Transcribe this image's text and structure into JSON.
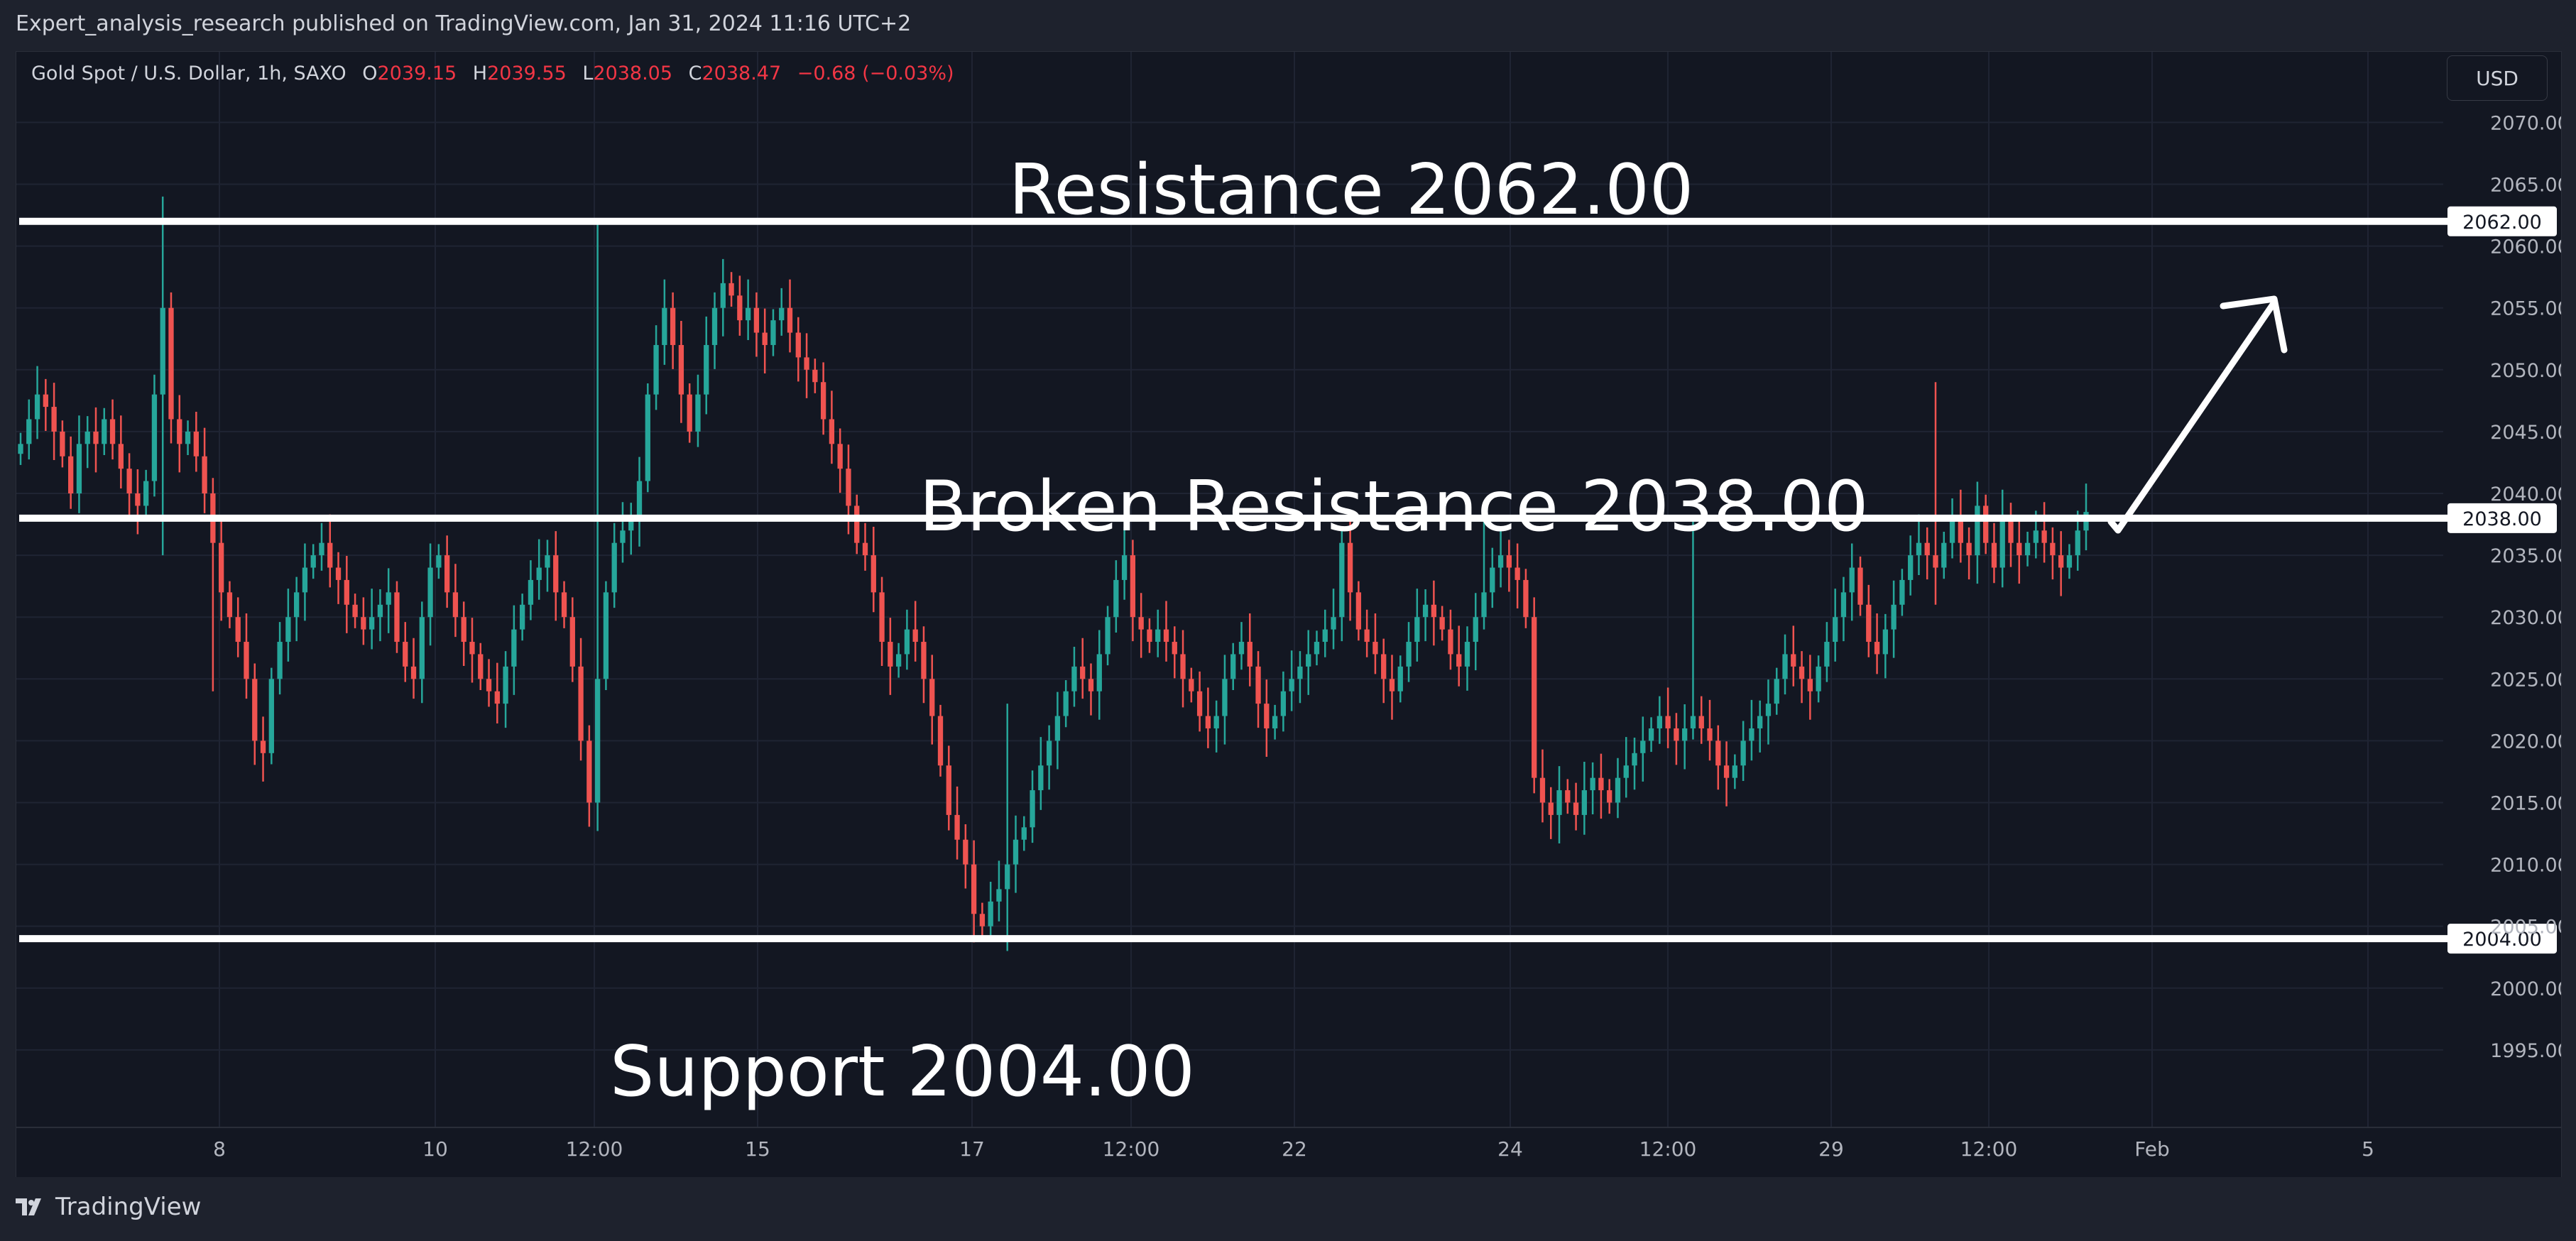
{
  "header": {
    "published": "Expert_analysis_research published on TradingView.com, Jan 31, 2024 11:16 UTC+2"
  },
  "legend": {
    "symbol": "Gold Spot / U.S. Dollar, 1h, SAXO",
    "o_label": "O",
    "o": "2039.15",
    "h_label": "H",
    "h": "2039.55",
    "l_label": "L",
    "l": "2038.05",
    "c_label": "C",
    "c": "2038.47",
    "change": "−0.68 (−0.03%)"
  },
  "currency": "USD",
  "footer": {
    "brand": "TradingView"
  },
  "colors": {
    "background": "#131722",
    "grid": "#1f2433",
    "up": "#26a69a",
    "down": "#ef5350",
    "annotation": "#ffffff"
  },
  "chart_data": {
    "type": "candlestick",
    "y_ticks": [
      "1995.00",
      "2000.00",
      "2005.00",
      "2010.00",
      "2015.00",
      "2020.00",
      "2025.00",
      "2030.00",
      "2035.00",
      "2040.00",
      "2045.00",
      "2050.00",
      "2055.00",
      "2060.00",
      "2065.00",
      "2070.00"
    ],
    "ylim": [
      1990.5,
      2072
    ],
    "x_ticks": [
      "8",
      "10",
      "12:00",
      "15",
      "17",
      "12:00",
      "22",
      "24",
      "12:00",
      "29",
      "12:00",
      "Feb",
      "5"
    ],
    "grid": true,
    "levels": [
      {
        "value": 2062.0,
        "label": "2062.00",
        "annotation": "Resistance 2062.00"
      },
      {
        "value": 2038.0,
        "label": "2038.00",
        "annotation": "Broken Resistance 2038.00"
      },
      {
        "value": 2004.0,
        "label": "2004.00",
        "annotation": "Support 2004.00"
      }
    ],
    "closes": [
      2044,
      2046,
      2048,
      2047,
      2045,
      2043,
      2040,
      2044,
      2045,
      2044,
      2046,
      2044,
      2042,
      2040,
      2039,
      2041,
      2048,
      2055,
      2046,
      2044,
      2045,
      2043,
      2040,
      2036,
      2032,
      2030,
      2028,
      2025,
      2020,
      2019,
      2025,
      2028,
      2030,
      2032,
      2034,
      2035,
      2036,
      2034,
      2033,
      2031,
      2030,
      2029,
      2030,
      2031,
      2032,
      2028,
      2026,
      2025,
      2030,
      2034,
      2035,
      2032,
      2030,
      2028,
      2027,
      2025,
      2024,
      2023,
      2026,
      2029,
      2031,
      2033,
      2034,
      2035,
      2032,
      2030,
      2026,
      2020,
      2015,
      2025,
      2032,
      2036,
      2037,
      2038,
      2041,
      2048,
      2052,
      2055,
      2052,
      2048,
      2045,
      2048,
      2052,
      2055,
      2057,
      2056,
      2054,
      2055,
      2053,
      2052,
      2054,
      2055,
      2053,
      2051,
      2050,
      2049,
      2046,
      2044,
      2042,
      2039,
      2036,
      2035,
      2032,
      2028,
      2026,
      2027,
      2029,
      2028,
      2025,
      2022,
      2018,
      2014,
      2012,
      2010,
      2006,
      2005,
      2007,
      2008,
      2010,
      2012,
      2013,
      2016,
      2018,
      2020,
      2022,
      2024,
      2026,
      2025,
      2024,
      2027,
      2030,
      2033,
      2035,
      2030,
      2029,
      2028,
      2029,
      2028,
      2027,
      2025,
      2024,
      2022,
      2021,
      2022,
      2025,
      2027,
      2028,
      2026,
      2023,
      2021,
      2022,
      2024,
      2025,
      2026,
      2027,
      2028,
      2029,
      2030,
      2036,
      2032,
      2029,
      2028,
      2027,
      2025,
      2024,
      2026,
      2028,
      2030,
      2031,
      2030,
      2029,
      2027,
      2026,
      2028,
      2030,
      2032,
      2034,
      2035,
      2034,
      2033,
      2030,
      2017,
      2015,
      2014,
      2016,
      2015,
      2014,
      2016,
      2017,
      2016,
      2015,
      2017,
      2018,
      2019,
      2020,
      2021,
      2022,
      2021,
      2020,
      2021,
      2022,
      2021,
      2020,
      2018,
      2017,
      2018,
      2020,
      2021,
      2022,
      2023,
      2025,
      2027,
      2026,
      2025,
      2024,
      2026,
      2028,
      2030,
      2032,
      2034,
      2031,
      2028,
      2027,
      2029,
      2031,
      2033,
      2035,
      2036,
      2035,
      2034,
      2036,
      2038,
      2036,
      2035,
      2039,
      2036,
      2034,
      2038,
      2036,
      2035,
      2036,
      2037,
      2036,
      2035,
      2034,
      2035,
      2037,
      2038.5
    ],
    "spikes": [
      {
        "index": 17,
        "high": 2064,
        "low": 2035
      },
      {
        "index": 23,
        "high": 2038,
        "low": 2024
      },
      {
        "index": 69,
        "high": 2062,
        "low": 2046
      },
      {
        "index": 118,
        "high": 2023,
        "low": 2003
      },
      {
        "index": 175,
        "high": 2039,
        "low": 2029
      },
      {
        "index": 200,
        "high": 2038,
        "low": 2028
      },
      {
        "index": 229,
        "high": 2049,
        "low": 2031
      }
    ]
  }
}
